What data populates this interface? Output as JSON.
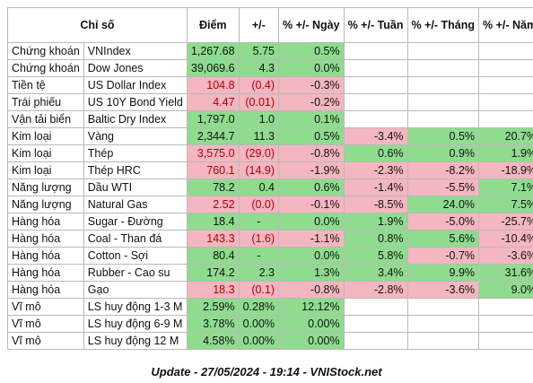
{
  "header": {
    "index": "Chỉ số",
    "price": "Điểm",
    "change": "+/-",
    "day": "% +/- Ngày",
    "week": "% +/- Tuần",
    "month": "% +/- Tháng",
    "year": "% +/- Năm"
  },
  "rows": [
    {
      "cat": "Chứng khoán",
      "sym": "VNIndex",
      "price": "1,267.68",
      "chg": "5.75",
      "day": "0.5%",
      "week": "",
      "month": "",
      "year": "",
      "s": [
        "pos",
        "pos",
        "pos",
        "",
        "",
        ""
      ]
    },
    {
      "cat": "Chứng khoán",
      "sym": "Dow Jones",
      "price": "39,069.6",
      "chg": "4.3",
      "day": "0.0%",
      "week": "",
      "month": "",
      "year": "",
      "s": [
        "pos",
        "pos",
        "pos",
        "",
        "",
        ""
      ]
    },
    {
      "cat": "Tiền tệ",
      "sym": "US Dollar Index",
      "price": "104.8",
      "chg": "(0.4)",
      "day": "-0.3%",
      "week": "",
      "month": "",
      "year": "",
      "s": [
        "neg",
        "neg",
        "neg",
        "",
        "",
        ""
      ]
    },
    {
      "cat": "Trái phiếu",
      "sym": "US 10Y Bond Yield",
      "price": "4.47",
      "chg": "(0.01)",
      "day": "-0.2%",
      "week": "",
      "month": "",
      "year": "",
      "s": [
        "neg",
        "neg",
        "neg",
        "",
        "",
        ""
      ]
    },
    {
      "cat": "Vận tải biển",
      "sym": "Baltic Dry Index",
      "price": "1,797.0",
      "chg": "1.0",
      "day": "0.1%",
      "week": "",
      "month": "",
      "year": "",
      "s": [
        "pos",
        "pos",
        "pos",
        "",
        "",
        ""
      ]
    },
    {
      "cat": "Kim loại",
      "sym": "Vàng",
      "price": "2,344.7",
      "chg": "11.3",
      "day": "0.5%",
      "week": "-3.4%",
      "month": "0.5%",
      "year": "20.7%",
      "s": [
        "pos",
        "pos",
        "pos",
        "neg",
        "pos",
        "pos"
      ]
    },
    {
      "cat": "Kim loại",
      "sym": "Thép",
      "price": "3,575.0",
      "chg": "(29.0)",
      "day": "-0.8%",
      "week": "0.6%",
      "month": "0.9%",
      "year": "1.9%",
      "s": [
        "neg",
        "neg",
        "neg",
        "pos",
        "pos",
        "pos"
      ]
    },
    {
      "cat": "Kim loại",
      "sym": "Thép HRC",
      "price": "760.1",
      "chg": "(14.9)",
      "day": "-1.9%",
      "week": "-2.3%",
      "month": "-8.2%",
      "year": "-18.9%",
      "s": [
        "neg",
        "neg",
        "neg",
        "neg",
        "neg",
        "neg"
      ]
    },
    {
      "cat": "Năng lượng",
      "sym": "Dầu WTI",
      "price": "78.2",
      "chg": "0.4",
      "day": "0.6%",
      "week": "-1.4%",
      "month": "-5.5%",
      "year": "7.1%",
      "s": [
        "pos",
        "pos",
        "pos",
        "neg",
        "neg",
        "pos"
      ]
    },
    {
      "cat": "Năng lượng",
      "sym": "Natural Gas",
      "price": "2.52",
      "chg": "(0.0)",
      "day": "-0.1%",
      "week": "-8.5%",
      "month": "24.0%",
      "year": "7.5%",
      "s": [
        "neg",
        "neg",
        "neg",
        "neg",
        "pos",
        "pos"
      ]
    },
    {
      "cat": "Hàng hóa",
      "sym": "Sugar - Đường",
      "price": "18.4",
      "chg": "-",
      "day": "0.0%",
      "week": "1.9%",
      "month": "-5.0%",
      "year": "-25.7%",
      "s": [
        "pos",
        "pos",
        "pos",
        "pos",
        "neg",
        "neg"
      ]
    },
    {
      "cat": "Hàng hóa",
      "sym": "Coal - Than đá",
      "price": "143.3",
      "chg": "(1.6)",
      "day": "-1.1%",
      "week": "0.8%",
      "month": "5.6%",
      "year": "-10.4%",
      "s": [
        "neg",
        "neg",
        "neg",
        "pos",
        "pos",
        "neg"
      ]
    },
    {
      "cat": "Hàng hóa",
      "sym": "Cotton - Sợi",
      "price": "80.4",
      "chg": "-",
      "day": "0.0%",
      "week": "5.8%",
      "month": "-0.7%",
      "year": "-3.6%",
      "s": [
        "pos",
        "pos",
        "pos",
        "pos",
        "neg",
        "neg"
      ]
    },
    {
      "cat": "Hàng hóa",
      "sym": "Rubber - Cao su",
      "price": "174.2",
      "chg": "2.3",
      "day": "1.3%",
      "week": "3.4%",
      "month": "9.9%",
      "year": "31.6%",
      "s": [
        "pos",
        "pos",
        "pos",
        "pos",
        "pos",
        "pos"
      ]
    },
    {
      "cat": "Hàng hóa",
      "sym": "Gạo",
      "price": "18.3",
      "chg": "(0.1)",
      "day": "-0.8%",
      "week": "-2.8%",
      "month": "-3.6%",
      "year": "9.0%",
      "s": [
        "neg",
        "neg",
        "neg",
        "neg",
        "neg",
        "pos"
      ]
    },
    {
      "cat": "Vĩ mô",
      "sym": "LS huy động 1-3 M",
      "price": "2.59%",
      "chg": "0.28%",
      "day": "12.12%",
      "week": "",
      "month": "",
      "year": "",
      "s": [
        "pos",
        "pos",
        "pos",
        "",
        "",
        ""
      ]
    },
    {
      "cat": "Vĩ mô",
      "sym": "LS huy động 6-9 M",
      "price": "3.78%",
      "chg": "0.00%",
      "day": "0.00%",
      "week": "",
      "month": "",
      "year": "",
      "s": [
        "pos",
        "pos",
        "pos",
        "",
        "",
        ""
      ]
    },
    {
      "cat": "Vĩ mô",
      "sym": "LS huy động 12 M",
      "price": "4.58%",
      "chg": "0.00%",
      "day": "0.00%",
      "week": "",
      "month": "",
      "year": "",
      "s": [
        "pos",
        "pos",
        "pos",
        "",
        "",
        ""
      ]
    }
  ],
  "footer": "Update - 27/05/2024 - 19:14 - VNIStock.net",
  "colors": {
    "positive": "#8fdc8f",
    "negative": "#f4b6c0",
    "negative_text": "#b00000"
  }
}
